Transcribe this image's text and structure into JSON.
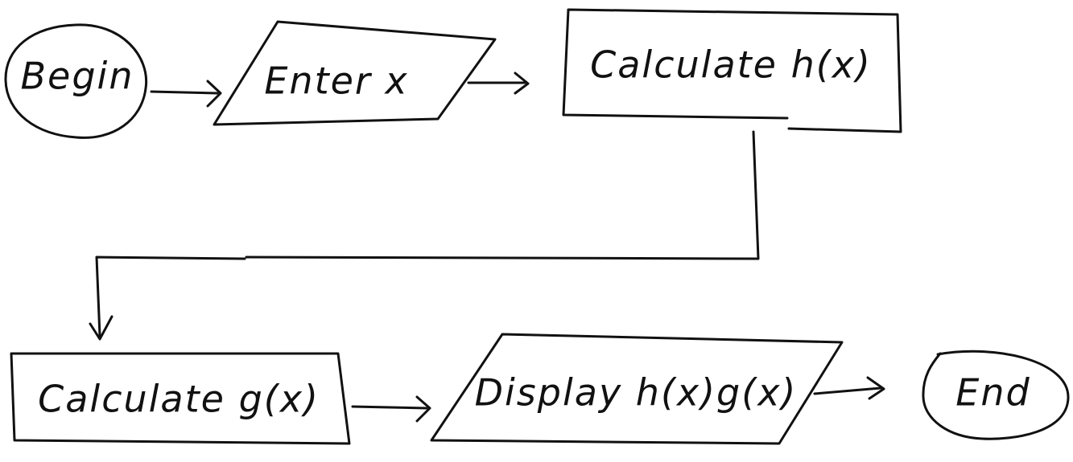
{
  "flowchart": {
    "nodes": {
      "begin": {
        "label": "Begin",
        "shape": "terminator"
      },
      "enter_x": {
        "label": "Enter x",
        "shape": "input-output"
      },
      "calc_h": {
        "label": "Calculate h(x)",
        "shape": "process"
      },
      "calc_g": {
        "label": "Calculate g(x)",
        "shape": "process"
      },
      "display": {
        "label": "Display h(x)g(x)",
        "shape": "input-output"
      },
      "end": {
        "label": "End",
        "shape": "terminator"
      }
    },
    "edges": [
      {
        "from": "begin",
        "to": "enter_x"
      },
      {
        "from": "enter_x",
        "to": "calc_h"
      },
      {
        "from": "calc_h",
        "to": "calc_g"
      },
      {
        "from": "calc_g",
        "to": "display"
      },
      {
        "from": "display",
        "to": "end"
      }
    ]
  },
  "colors": {
    "ink": "#111111",
    "background": "#ffffff"
  }
}
